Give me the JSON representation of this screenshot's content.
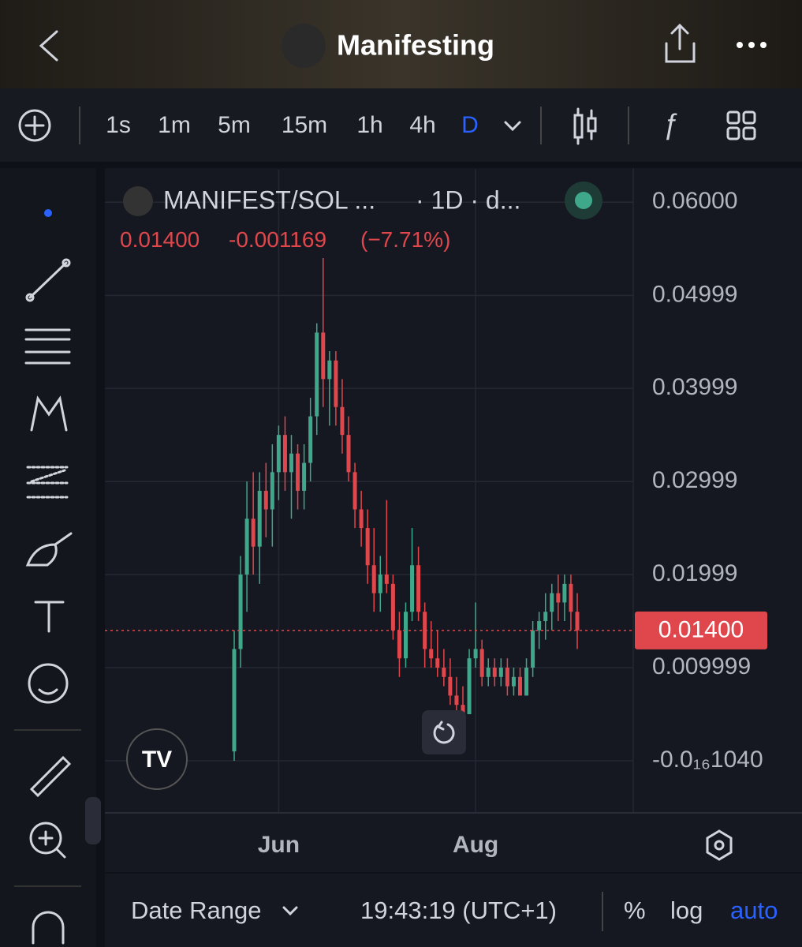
{
  "header": {
    "title": "Manifesting"
  },
  "toolbar": {
    "intervals": [
      "1s",
      "1m",
      "5m",
      "15m",
      "1h",
      "4h",
      "D"
    ]
  },
  "chart_data": {
    "type": "candlestick",
    "symbol": "MANIFEST/SOL ...",
    "interval": "· 1D · d...",
    "ohlc_text": [
      "0.01400",
      "-0.001169",
      "(−7.71%)"
    ],
    "categories": [
      null,
      null,
      null,
      null,
      null,
      null,
      null,
      "Jun",
      null,
      null,
      null,
      null,
      null,
      null,
      null,
      null,
      null,
      null,
      null,
      null,
      null,
      null,
      null,
      null,
      null,
      null,
      null,
      null,
      null,
      null,
      null,
      null,
      null,
      null,
      null,
      null,
      null,
      null,
      "Aug",
      null,
      null,
      null,
      null,
      null,
      null,
      null,
      null,
      null,
      null,
      null,
      null,
      null,
      null,
      null,
      null
    ],
    "open": [
      0.001,
      0.012,
      0.02,
      0.026,
      0.023,
      0.029,
      0.027,
      0.031,
      0.035,
      0.031,
      0.033,
      0.029,
      0.032,
      0.037,
      0.046,
      0.041,
      0.043,
      0.038,
      0.035,
      0.031,
      0.027,
      0.025,
      0.021,
      0.018,
      0.02,
      0.019,
      0.014,
      0.011,
      0.016,
      0.021,
      0.016,
      0.012,
      0.011,
      0.01,
      0.009,
      0.007,
      0.006,
      0.005,
      0.011,
      0.012,
      0.009,
      0.01,
      0.009,
      0.01,
      0.008,
      0.009,
      0.007,
      0.01,
      0.014,
      0.015,
      0.016,
      0.018,
      0.017,
      0.019,
      0.016
    ],
    "high": [
      0.014,
      0.022,
      0.03,
      0.031,
      0.031,
      0.032,
      0.034,
      0.036,
      0.037,
      0.035,
      0.034,
      0.034,
      0.039,
      0.047,
      0.054,
      0.044,
      0.044,
      0.041,
      0.037,
      0.032,
      0.029,
      0.027,
      0.025,
      0.022,
      0.028,
      0.02,
      0.016,
      0.017,
      0.025,
      0.023,
      0.017,
      0.015,
      0.014,
      0.012,
      0.011,
      0.009,
      0.008,
      0.012,
      0.017,
      0.013,
      0.011,
      0.011,
      0.011,
      0.011,
      0.01,
      0.01,
      0.011,
      0.015,
      0.016,
      0.018,
      0.019,
      0.02,
      0.02,
      0.02,
      0.018
    ],
    "low": [
      0.0,
      0.01,
      0.016,
      0.02,
      0.019,
      0.024,
      0.023,
      0.028,
      0.029,
      0.026,
      0.027,
      0.027,
      0.03,
      0.035,
      0.038,
      0.036,
      0.036,
      0.033,
      0.03,
      0.025,
      0.023,
      0.019,
      0.016,
      0.016,
      0.018,
      0.013,
      0.009,
      0.01,
      0.015,
      0.015,
      0.01,
      0.01,
      0.009,
      0.008,
      0.006,
      0.005,
      0.004,
      0.005,
      0.01,
      0.008,
      0.008,
      0.008,
      0.008,
      0.007,
      0.007,
      0.007,
      0.007,
      0.009,
      0.012,
      0.013,
      0.014,
      0.015,
      0.015,
      0.014,
      0.012
    ],
    "close": [
      0.012,
      0.02,
      0.026,
      0.023,
      0.029,
      0.027,
      0.031,
      0.035,
      0.031,
      0.033,
      0.029,
      0.032,
      0.037,
      0.046,
      0.041,
      0.043,
      0.038,
      0.035,
      0.031,
      0.027,
      0.025,
      0.021,
      0.018,
      0.02,
      0.019,
      0.014,
      0.011,
      0.016,
      0.021,
      0.016,
      0.012,
      0.011,
      0.01,
      0.009,
      0.007,
      0.006,
      0.005,
      0.011,
      0.012,
      0.009,
      0.01,
      0.009,
      0.01,
      0.008,
      0.009,
      0.007,
      0.01,
      0.014,
      0.015,
      0.016,
      0.018,
      0.017,
      0.019,
      0.016,
      0.014
    ],
    "up_color": "#3fa88a",
    "down_color": "#e0474c",
    "ylim": [
      -0.0056,
      0.0635
    ],
    "yticks": [
      {
        "value": 0.06,
        "label": "0.06000"
      },
      0.04999,
      0.03999,
      0.02999,
      0.01999,
      0.009999,
      {
        "value": -1.04e-17,
        "label": "-0.0₁₆1040"
      }
    ],
    "last_price": {
      "value": 0.014,
      "label": "0.01400"
    },
    "grid": true
  },
  "footer": {
    "range": "Date Range",
    "clock": "19:43:19 (UTC+1)",
    "percent": "%",
    "log": "log",
    "auto": "auto"
  }
}
